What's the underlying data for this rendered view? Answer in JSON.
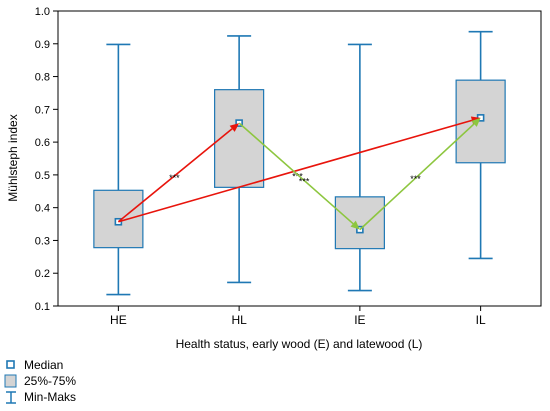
{
  "chart_data": {
    "type": "boxplot",
    "xlabel": "Health status, early wood (E) and latewood (L)",
    "ylabel": "Mühlsteph index",
    "ylim": [
      0.1,
      1.0
    ],
    "yticks": [
      "0.1",
      "0.2",
      "0.3",
      "0.4",
      "0.5",
      "0.6",
      "0.7",
      "0.8",
      "0.9",
      "1.0"
    ],
    "categories": [
      "HE",
      "HL",
      "IE",
      "IL"
    ],
    "boxes": [
      {
        "category": "HE",
        "min": 0.135,
        "q1": 0.278,
        "median": 0.357,
        "q3": 0.453,
        "max": 0.898
      },
      {
        "category": "HL",
        "min": 0.172,
        "q1": 0.462,
        "median": 0.658,
        "q3": 0.76,
        "max": 0.924
      },
      {
        "category": "IE",
        "min": 0.147,
        "q1": 0.275,
        "median": 0.333,
        "q3": 0.433,
        "max": 0.898
      },
      {
        "category": "IL",
        "min": 0.245,
        "q1": 0.537,
        "median": 0.674,
        "q3": 0.789,
        "max": 0.937
      }
    ],
    "arrows": [
      {
        "from": "HE",
        "to": "HL",
        "color": "#e8140c",
        "label": "***"
      },
      {
        "from": "HE",
        "to": "IL",
        "color": "#e8140c",
        "label": "***"
      },
      {
        "from": "HL",
        "to": "IE",
        "color": "#8dc63f",
        "label": "***"
      },
      {
        "from": "IE",
        "to": "IL",
        "color": "#8dc63f",
        "label": "***"
      }
    ],
    "legend": {
      "position": "bottom-left",
      "items": [
        "Median",
        "25%-75%",
        "Min-Maks"
      ]
    },
    "colors": {
      "box_fill": "#d4d4d4",
      "box_stroke": "#1f78b4",
      "whisker": "#1f78b4",
      "arrow_red": "#e8140c",
      "arrow_green": "#8dc63f"
    }
  }
}
